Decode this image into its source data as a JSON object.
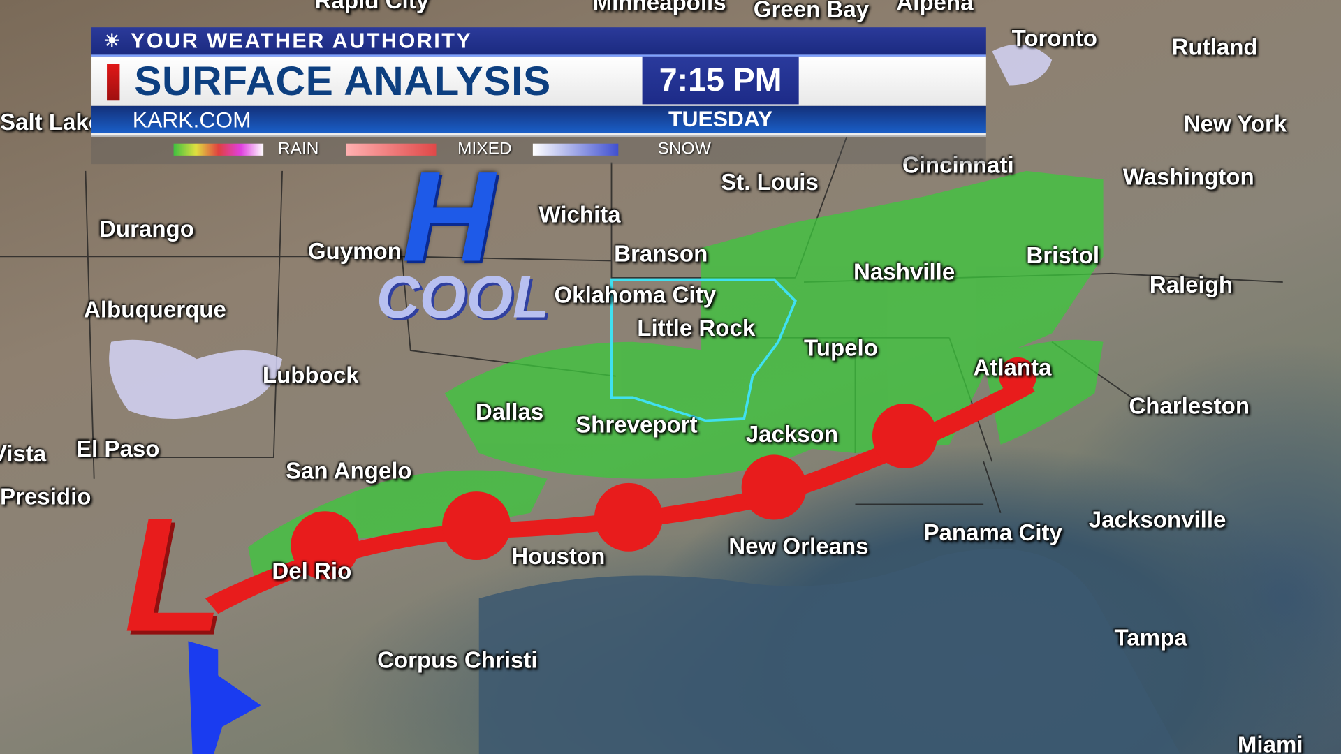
{
  "banner": {
    "tagline": "YOUR WEATHER AUTHORITY",
    "title": "SURFACE ANALYSIS",
    "time": "7:15 PM",
    "website": "KARK.COM",
    "day": "TUESDAY",
    "logo": "nbc-peacock-icon"
  },
  "legend": {
    "rain": "RAIN",
    "mixed": "MIXED",
    "snow": "SNOW"
  },
  "pressure": {
    "high": "H",
    "high_label": "COOL",
    "low": "L"
  },
  "colors": {
    "warm_front": "#e81c1c",
    "cold_front": "#1a3cf0",
    "high": "#1e5ae8",
    "rain": "#3cc83c",
    "arkansas_outline": "#40e0f0",
    "banner_blue": "#1d2b88"
  },
  "cities": [
    {
      "name": "Rapid City"
    },
    {
      "name": "Minneapolis"
    },
    {
      "name": "Green Bay"
    },
    {
      "name": "Alpena"
    },
    {
      "name": "Toronto"
    },
    {
      "name": "Rutland"
    },
    {
      "name": "Salt Lake"
    },
    {
      "name": "New York"
    },
    {
      "name": "Cincinnati"
    },
    {
      "name": "Washington"
    },
    {
      "name": "St. Louis"
    },
    {
      "name": "Durango"
    },
    {
      "name": "Guymon"
    },
    {
      "name": "Branson"
    },
    {
      "name": "Bristol"
    },
    {
      "name": "Nashville"
    },
    {
      "name": "Raleigh"
    },
    {
      "name": "Albuquerque"
    },
    {
      "name": "Oklahoma City"
    },
    {
      "name": "Little Rock"
    },
    {
      "name": "Tupelo"
    },
    {
      "name": "Lubbock"
    },
    {
      "name": "Atlanta"
    },
    {
      "name": "Charleston"
    },
    {
      "name": "Dallas"
    },
    {
      "name": "Shreveport"
    },
    {
      "name": "Jackson"
    },
    {
      "name": "El Paso"
    },
    {
      "name": "Vista"
    },
    {
      "name": "San Angelo"
    },
    {
      "name": "Presidio"
    },
    {
      "name": "Del Rio"
    },
    {
      "name": "Houston"
    },
    {
      "name": "New Orleans"
    },
    {
      "name": "Panama City"
    },
    {
      "name": "Jacksonville"
    },
    {
      "name": "Corpus Christi"
    },
    {
      "name": "Tampa"
    },
    {
      "name": "Miami"
    },
    {
      "name": "Wichita"
    }
  ]
}
